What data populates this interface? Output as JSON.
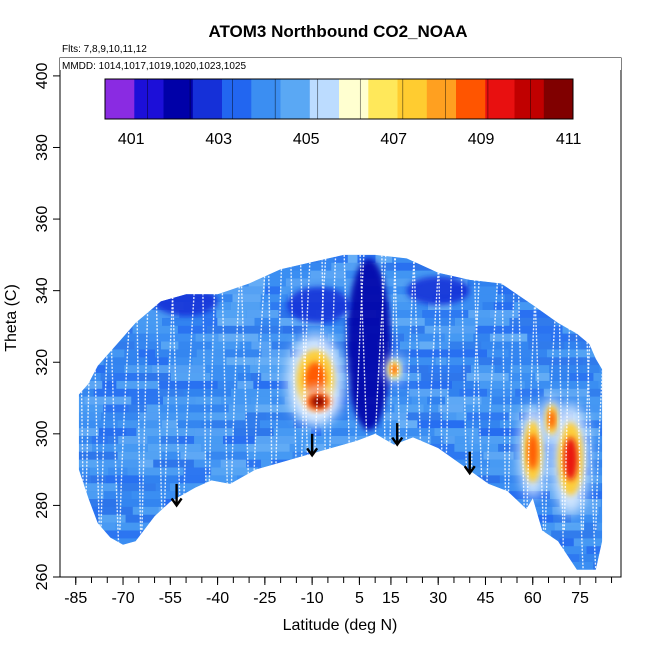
{
  "chart_data": {
    "type": "heatmap",
    "title": "ATOM3 Northbound CO2_NOAA",
    "subtitle_flights": "Flts: 7,8,9,10,11,12",
    "subtitle_dates": "MMDD: 1014,1017,1019,1020,1023,1025",
    "xlabel": "Latitude (deg N)",
    "ylabel": "Theta (C)",
    "xlim": [
      -90,
      88
    ],
    "ylim": [
      260,
      405
    ],
    "x_ticks": [
      -85,
      -70,
      -55,
      -40,
      -25,
      -10,
      5,
      15,
      30,
      45,
      60,
      75
    ],
    "x_tick_labels": [
      "-85",
      "-70",
      "-55",
      "-40",
      "-25",
      "-10",
      "5",
      "15",
      "30",
      "45",
      "60",
      "75"
    ],
    "y_ticks": [
      260,
      280,
      300,
      320,
      340,
      360,
      380,
      400
    ],
    "y_tick_labels": [
      "260",
      "280",
      "300",
      "320",
      "340",
      "360",
      "380",
      "400"
    ],
    "colorbar": {
      "min": 400.4,
      "max": 411.1,
      "tick_values": [
        401,
        403,
        405,
        407,
        409,
        411
      ],
      "tick_labels": [
        "401",
        "403",
        "405",
        "407",
        "409",
        "411"
      ],
      "colors": [
        "#8a2be2",
        "#1c0fd8",
        "#0000a8",
        "#1530d8",
        "#2266f0",
        "#3b8ef2",
        "#5aa8f4",
        "#bcdcff",
        "#ffffd0",
        "#ffe85a",
        "#ffcc30",
        "#ffa020",
        "#ff5500",
        "#e81010",
        "#c00000",
        "#800000"
      ]
    },
    "coverage_upper": [
      [
        -84,
        311
      ],
      [
        -81,
        314
      ],
      [
        -78,
        319
      ],
      [
        -74,
        323
      ],
      [
        -70,
        327
      ],
      [
        -66,
        331
      ],
      [
        -62,
        334
      ],
      [
        -58,
        337
      ],
      [
        -50,
        339
      ],
      [
        -40,
        339
      ],
      [
        -30,
        342
      ],
      [
        -20,
        346
      ],
      [
        -10,
        348
      ],
      [
        0,
        350
      ],
      [
        10,
        350
      ],
      [
        20,
        349
      ],
      [
        30,
        345
      ],
      [
        40,
        343
      ],
      [
        50,
        342
      ],
      [
        60,
        336
      ],
      [
        68,
        331
      ],
      [
        74,
        328
      ],
      [
        78,
        325
      ],
      [
        80,
        321
      ],
      [
        82,
        318
      ]
    ],
    "coverage_lower": [
      [
        -84,
        290
      ],
      [
        -81,
        282
      ],
      [
        -78,
        275
      ],
      [
        -74,
        271
      ],
      [
        -70,
        269
      ],
      [
        -66,
        270
      ],
      [
        -60,
        277
      ],
      [
        -55,
        281
      ],
      [
        -47,
        285
      ],
      [
        -42,
        287
      ],
      [
        -36,
        286
      ],
      [
        -28,
        290
      ],
      [
        -20,
        292
      ],
      [
        -12,
        294
      ],
      [
        -4,
        296
      ],
      [
        4,
        298
      ],
      [
        10,
        300
      ],
      [
        16,
        297
      ],
      [
        22,
        299
      ],
      [
        30,
        296
      ],
      [
        38,
        291
      ],
      [
        46,
        286
      ],
      [
        52,
        284
      ],
      [
        58,
        279
      ],
      [
        60,
        282
      ],
      [
        63,
        273
      ],
      [
        68,
        270
      ],
      [
        74,
        262
      ],
      [
        80,
        262
      ],
      [
        82,
        270
      ]
    ],
    "enhanced_regions": [
      {
        "lat": -9,
        "theta": 315,
        "rx": 6,
        "ry": 10,
        "value": 409
      },
      {
        "lat": -8,
        "theta": 309,
        "rx": 4,
        "ry": 3,
        "value": 410.5
      },
      {
        "lat": 60,
        "theta": 295,
        "rx": 3,
        "ry": 10,
        "value": 409
      },
      {
        "lat": 72,
        "theta": 293,
        "rx": 4,
        "ry": 12,
        "value": 409.5
      },
      {
        "lat": 16,
        "theta": 318,
        "rx": 2,
        "ry": 3,
        "value": 408.5
      },
      {
        "lat": 66,
        "theta": 304,
        "rx": 2,
        "ry": 5,
        "value": 409
      }
    ],
    "low_regions": [
      {
        "lat": 8,
        "theta": 325,
        "rx": 7,
        "ry": 24,
        "value": 402
      },
      {
        "lat": -8,
        "theta": 336,
        "rx": 10,
        "ry": 5,
        "value": 402.6
      },
      {
        "lat": -50,
        "theta": 337,
        "rx": 10,
        "ry": 4,
        "value": 402.8
      },
      {
        "lat": 30,
        "theta": 340,
        "rx": 10,
        "ry": 4,
        "value": 403
      }
    ],
    "flight_profiles_lat": [
      -82,
      -77,
      -71,
      -64,
      -57,
      -51,
      -43,
      -36,
      -29,
      -22,
      -14,
      -10,
      -5,
      3,
      9,
      14,
      19,
      26,
      32,
      40,
      45,
      52,
      58,
      64,
      70,
      76,
      80
    ],
    "arrows": [
      {
        "lat": -53,
        "theta_top": 286,
        "theta_bottom": 280
      },
      {
        "lat": -10,
        "theta_top": 300,
        "theta_bottom": 294
      },
      {
        "lat": 17,
        "theta_top": 303,
        "theta_bottom": 297
      },
      {
        "lat": 40,
        "theta_top": 295,
        "theta_bottom": 289
      }
    ]
  }
}
